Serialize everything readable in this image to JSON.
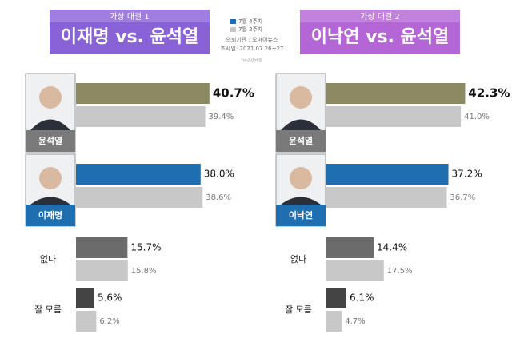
{
  "source": {
    "client": "의뢰기관 : 오마이뉴스",
    "date": "조사일: 2021.07.26~27",
    "n": "n=2,056명"
  },
  "chart_data": [
    {
      "type": "bar",
      "orientation": "horizontal",
      "subtitle": "가상 대결 1",
      "title": "이재명 vs. 윤석열",
      "header_color": "#8a62d8",
      "categories": [
        "윤석열",
        "이재명",
        "없다",
        "잘 모름"
      ],
      "series": [
        {
          "name": "7월 4주차",
          "color": "#1f6fb0",
          "colors": [
            "#8b8a63",
            "#1f6fb0",
            "#6b6b6b",
            "#444444"
          ],
          "values": [
            40.7,
            38.0,
            15.7,
            5.6
          ],
          "value_labels": [
            "40.7%",
            "38.0%",
            "15.7%",
            "5.6%"
          ]
        },
        {
          "name": "7월 2주차",
          "color": "#c8c8c8",
          "values": [
            39.4,
            38.6,
            15.8,
            6.2
          ],
          "value_labels": [
            "39.4%",
            "38.6%",
            "15.8%",
            "6.2%"
          ]
        }
      ]
    },
    {
      "type": "bar",
      "orientation": "horizontal",
      "subtitle": "가상 대결 2",
      "title": "이낙연 vs. 윤석열",
      "header_color": "#b466d6",
      "categories": [
        "윤석열",
        "이낙연",
        "없다",
        "잘 모름"
      ],
      "series": [
        {
          "name": "7월 4주차",
          "color": "#1f6fb0",
          "colors": [
            "#8b8a63",
            "#1f6fb0",
            "#6b6b6b",
            "#444444"
          ],
          "values": [
            42.3,
            37.2,
            14.4,
            6.1
          ],
          "value_labels": [
            "42.3%",
            "37.2%",
            "14.4%",
            "6.1%"
          ]
        },
        {
          "name": "7월 2주차",
          "color": "#c8c8c8",
          "values": [
            41.0,
            36.7,
            17.5,
            4.7
          ],
          "value_labels": [
            "41.0%",
            "36.7%",
            "17.5%",
            "4.7%"
          ]
        }
      ]
    }
  ]
}
